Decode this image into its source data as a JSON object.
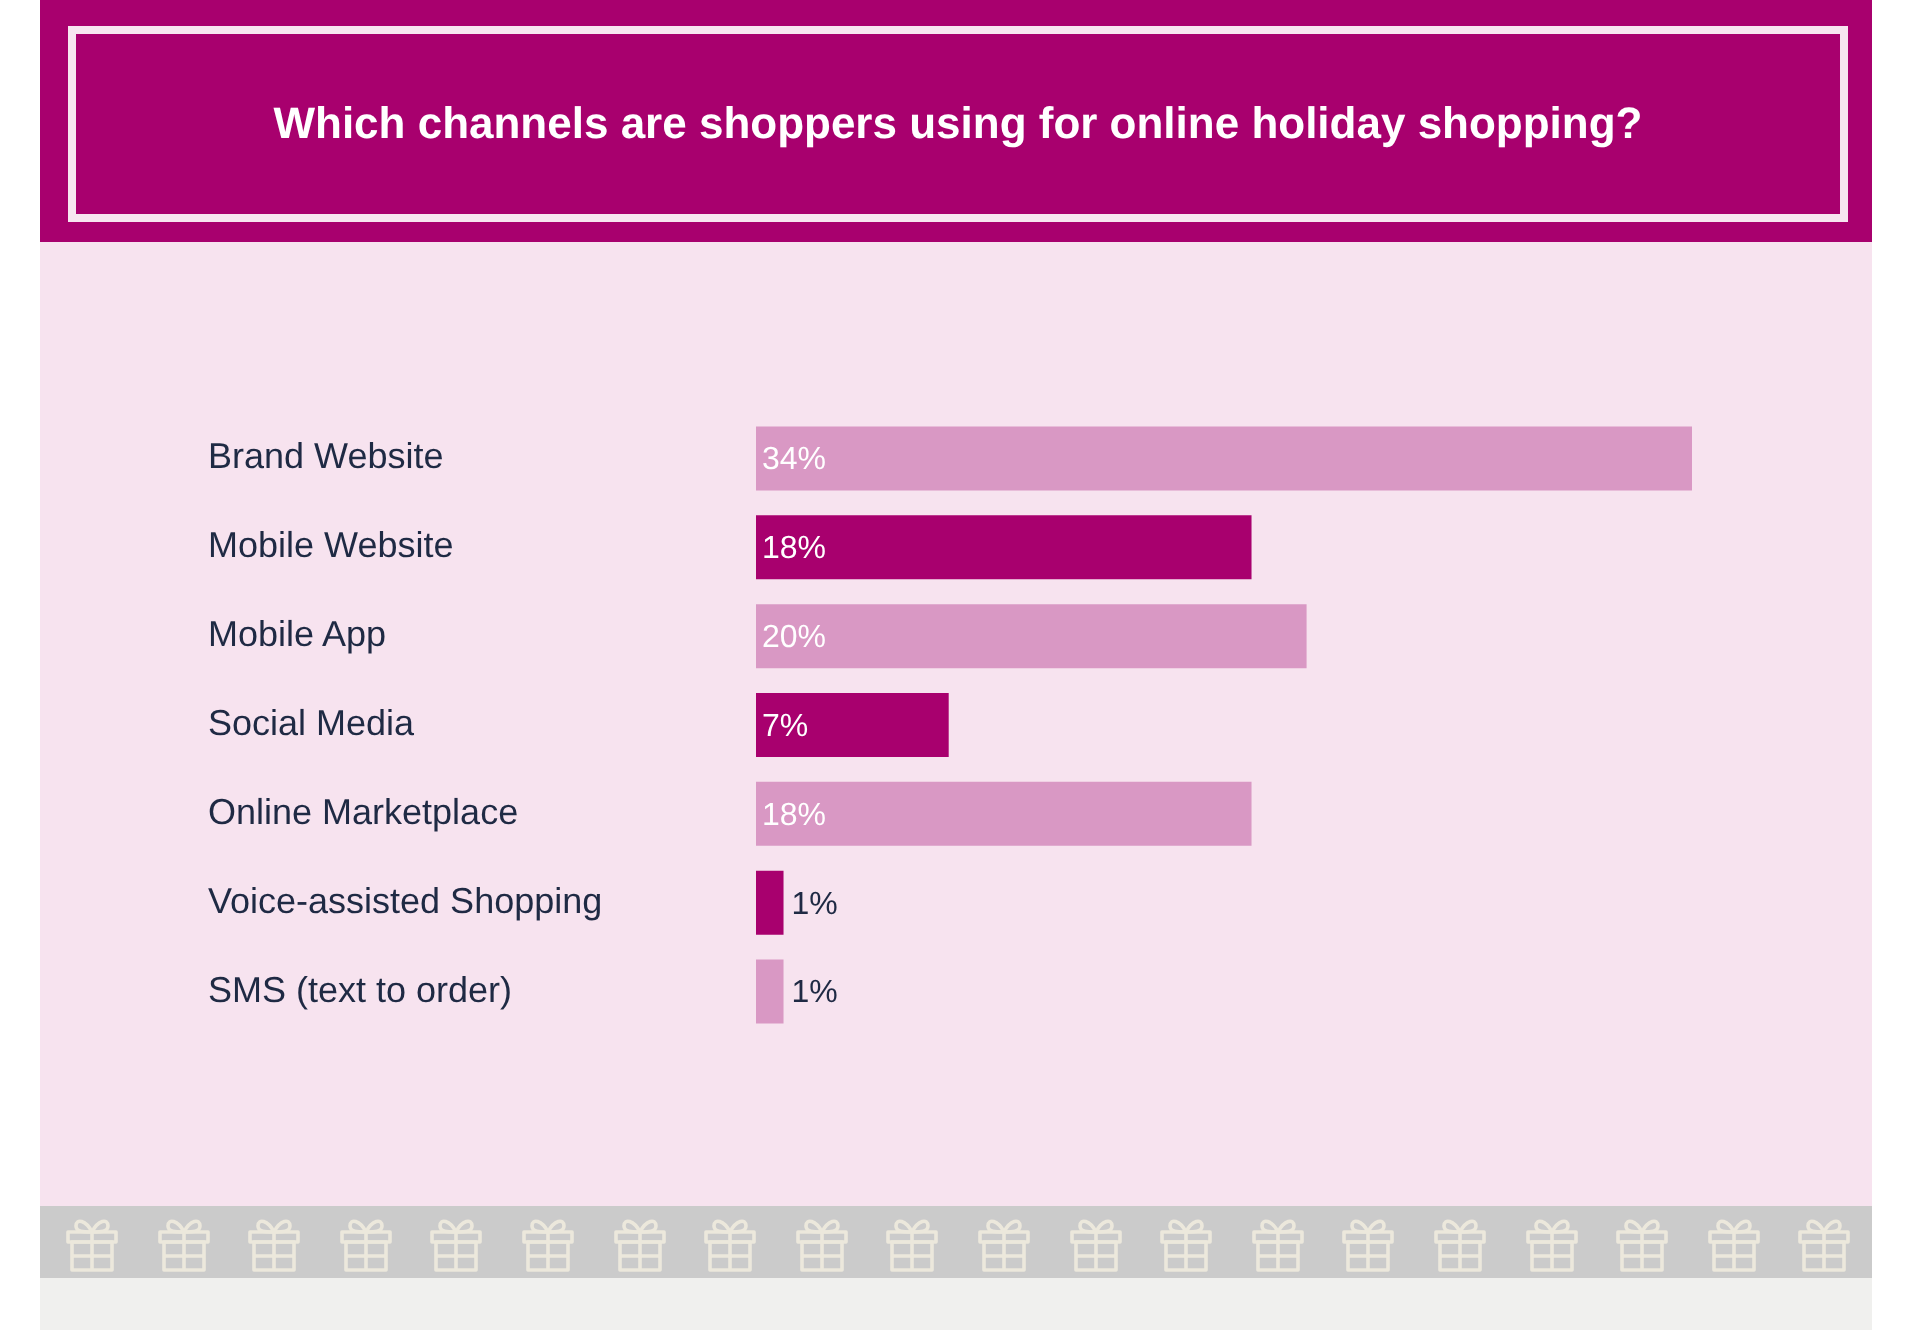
{
  "chart_data": {
    "type": "bar",
    "title": "Which channels are shoppers using for online holiday shopping?",
    "categories": [
      "Brand Website",
      "Mobile Website",
      "Mobile App",
      "Social Media",
      "Online Marketplace",
      "Voice-assisted Shopping",
      "SMS (text to order)"
    ],
    "values": [
      34,
      18,
      20,
      7,
      18,
      1,
      1
    ],
    "colors": [
      "#d998c4",
      "#a8006e",
      "#d998c4",
      "#a8006e",
      "#d998c4",
      "#a8006e",
      "#d998c4"
    ],
    "value_labels": [
      "34%",
      "18%",
      "20%",
      "7%",
      "18%",
      "1%",
      "1%"
    ],
    "orientation": "horizontal",
    "xlim": [
      0,
      34
    ],
    "tick_labels": "y"
  }
}
